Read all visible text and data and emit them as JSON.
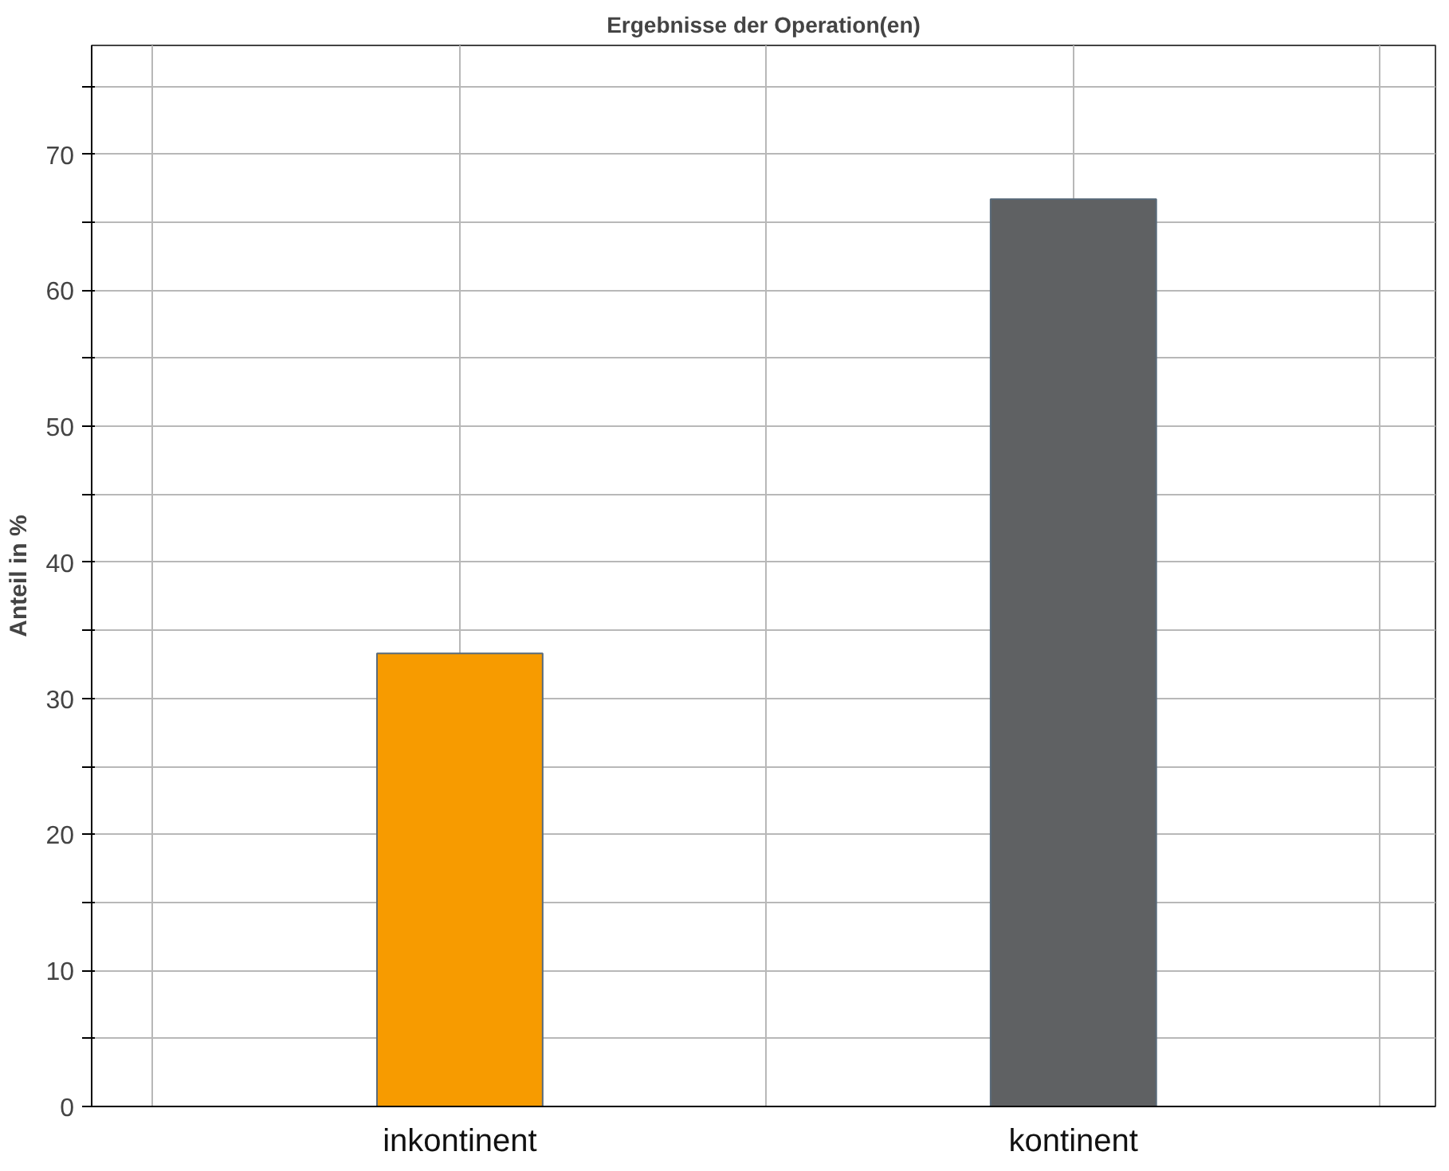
{
  "chart_data": {
    "type": "bar",
    "title": "Ergebnisse der Operation(en)",
    "ylabel": "Anteil in %",
    "categories": [
      "inkontinent",
      "kontinent"
    ],
    "values": [
      33.3,
      66.7
    ],
    "colors": [
      "#f79b00",
      "#5f6163"
    ],
    "ylim": [
      0,
      78
    ],
    "yticks": [
      0,
      {
        "value": 5,
        "label": null
      },
      10,
      {
        "value": 15,
        "label": null
      },
      20,
      {
        "value": 25,
        "label": null
      },
      30,
      {
        "value": 35,
        "label": null
      },
      40,
      {
        "value": 45,
        "label": null
      },
      50,
      {
        "value": 55,
        "label": null
      },
      60,
      {
        "value": 65,
        "label": null
      },
      70,
      {
        "value": 75,
        "label": null
      }
    ],
    "grid": true
  }
}
